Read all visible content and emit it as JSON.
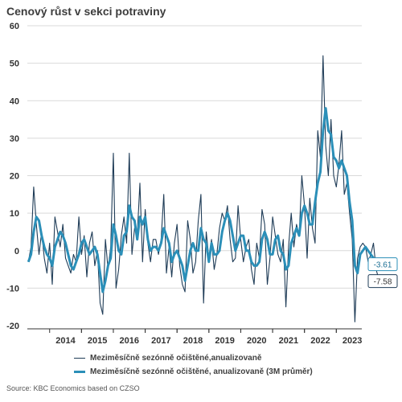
{
  "title": "Cenový růst v sekci potraviny",
  "source": "Source: KBC Economics based on CZSO",
  "colors": {
    "monthly": "#1f3c57",
    "avg3m": "#2b8fb8",
    "grid": "#d9d9d9",
    "axis": "#333333"
  },
  "chart_data": {
    "type": "line",
    "title": "Cenový růst v sekci potraviny",
    "xlabel": "",
    "ylabel": "",
    "ylim": [
      -20,
      60
    ],
    "yticks": [
      -20,
      -10,
      0,
      10,
      20,
      30,
      40,
      50,
      60
    ],
    "xlim": [
      2013.3,
      2023.8
    ],
    "xtick_labels": [
      "2014",
      "2015",
      "2016",
      "2017",
      "2018",
      "2019",
      "2020",
      "2021",
      "2022",
      "2023"
    ],
    "legend_position": "bottom",
    "grid": true,
    "series": [
      {
        "name": "Meziměsíčně sezónně očištěné,anualizovaně",
        "x_start": "2013-05",
        "values": [
          -3,
          1,
          17,
          7,
          -1,
          5,
          -2,
          -6,
          2,
          -9,
          9,
          5,
          1,
          7,
          -2,
          -4,
          -6,
          -1,
          -3,
          9,
          -1,
          4,
          -7,
          2,
          5,
          -4,
          0,
          -14,
          -17,
          3,
          -5,
          1,
          26,
          -10,
          -5,
          4,
          9,
          2,
          26,
          -1,
          6,
          4,
          18,
          -3,
          11,
          2,
          -3,
          3,
          3,
          -1,
          3,
          15,
          -6,
          1,
          -7,
          2,
          7,
          -4,
          -9,
          -11,
          8,
          3,
          -6,
          -3,
          8,
          15,
          -14,
          5,
          -2,
          3,
          -5,
          -1,
          6,
          10,
          8,
          12,
          3,
          -3,
          -2,
          12,
          3,
          -3,
          1,
          3,
          -5,
          -9,
          2,
          -2,
          11,
          7,
          -9,
          -2,
          9,
          4,
          -1,
          -3,
          3,
          -15,
          1,
          10,
          1,
          7,
          4,
          20,
          12,
          -2,
          14,
          6,
          2,
          32,
          25,
          52,
          28,
          20,
          35,
          20,
          17,
          23,
          32,
          15,
          18,
          10,
          3,
          -19,
          -2,
          1,
          2,
          1,
          -3,
          -1,
          2,
          -5,
          -7.58
        ],
        "end_label": "-7.58"
      },
      {
        "name": "Meziměsíčně sezónně očištěné, anualizovaně (3M průměr)",
        "x_start": "2013-05",
        "values": [
          -3,
          -1,
          5,
          9,
          8,
          4,
          1,
          -1,
          -2,
          -4,
          1,
          3,
          5,
          4,
          2,
          -1,
          -4,
          -5,
          -3,
          -1,
          2,
          3,
          1,
          -1,
          0,
          1,
          -1,
          -6,
          -11,
          -8,
          -4,
          -2,
          7,
          4,
          0,
          -1,
          4,
          5,
          12,
          9,
          8,
          3,
          9,
          7,
          9,
          3,
          0,
          1,
          1,
          0,
          2,
          6,
          4,
          2,
          -3,
          -1,
          0,
          -2,
          -4,
          -8,
          -4,
          0,
          2,
          0,
          0,
          6,
          3,
          2,
          -3,
          2,
          -1,
          -1,
          0,
          5,
          8,
          10,
          8,
          4,
          0,
          2,
          4,
          4,
          0,
          0,
          -3,
          -4,
          -4,
          -3,
          3,
          5,
          3,
          -1,
          -1,
          3,
          4,
          0,
          -1,
          -5,
          -4,
          2,
          4,
          6,
          4,
          10,
          12,
          10,
          7,
          7,
          13,
          18,
          21,
          32,
          38,
          32,
          31,
          25,
          24,
          22,
          24,
          22,
          20,
          13,
          8,
          -4,
          -6,
          -1,
          0,
          1,
          0,
          -1,
          -2,
          -3,
          -3.61
        ],
        "end_label": "-3.61"
      }
    ]
  }
}
